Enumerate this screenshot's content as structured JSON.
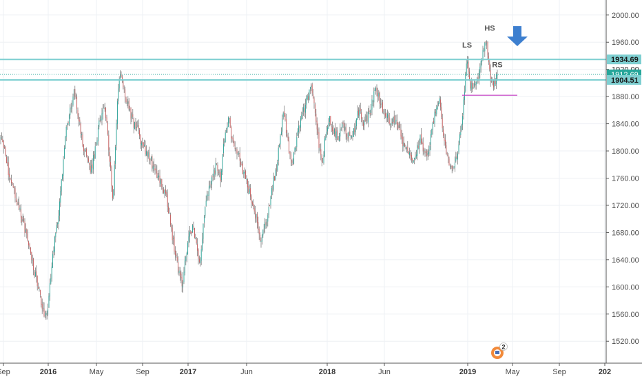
{
  "chart_data": {
    "type": "candlestick",
    "y_ticks": [
      "2000.00",
      "1960.00",
      "1920.00",
      "1880.00",
      "1840.00",
      "1800.00",
      "1760.00",
      "1720.00",
      "1680.00",
      "1640.00",
      "1600.00",
      "1560.00",
      "1520.00"
    ],
    "y_tick_values": [
      2000,
      1960,
      1920,
      1880,
      1840,
      1800,
      1760,
      1720,
      1680,
      1640,
      1600,
      1560,
      1520
    ],
    "ylim": [
      1505,
      2015
    ],
    "x_ticks": [
      {
        "label": "Sep",
        "bold": false
      },
      {
        "label": "2016",
        "bold": true
      },
      {
        "label": "May",
        "bold": false
      },
      {
        "label": "Sep",
        "bold": false
      },
      {
        "label": "2017",
        "bold": true
      },
      {
        "label": "Jun",
        "bold": false
      },
      {
        "label": "2018",
        "bold": true
      },
      {
        "label": "Jun",
        "bold": false
      },
      {
        "label": "2019",
        "bold": true
      },
      {
        "label": "May",
        "bold": false
      },
      {
        "label": "Sep",
        "bold": false
      },
      {
        "label": "202",
        "bold": true
      }
    ],
    "price_levels": [
      {
        "label": "1934.69",
        "value": 1934.69,
        "kind": "resistance",
        "color": "#7ecfd1"
      },
      {
        "label": "1912.69",
        "value": 1912.69,
        "kind": "last-price",
        "color": "#26a69a"
      },
      {
        "label": "1904.51",
        "value": 1904.51,
        "kind": "support",
        "color": "#7ecfd1"
      }
    ],
    "hidden_level_label": "1920.00",
    "neckline_value": 1882,
    "annotations": [
      "LS",
      "HS",
      "RS"
    ],
    "anchors": [
      [
        0,
        1820
      ],
      [
        6,
        1805
      ],
      [
        12,
        1770
      ],
      [
        18,
        1750
      ],
      [
        25,
        1725
      ],
      [
        32,
        1700
      ],
      [
        40,
        1670
      ],
      [
        48,
        1630
      ],
      [
        55,
        1600
      ],
      [
        62,
        1565
      ],
      [
        68,
        1555
      ],
      [
        72,
        1600
      ],
      [
        78,
        1660
      ],
      [
        84,
        1700
      ],
      [
        90,
        1760
      ],
      [
        96,
        1830
      ],
      [
        102,
        1860
      ],
      [
        108,
        1890
      ],
      [
        114,
        1850
      ],
      [
        120,
        1810
      ],
      [
        126,
        1790
      ],
      [
        132,
        1770
      ],
      [
        138,
        1800
      ],
      [
        144,
        1840
      ],
      [
        150,
        1870
      ],
      [
        156,
        1830
      ],
      [
        160,
        1780
      ],
      [
        164,
        1730
      ],
      [
        168,
        1820
      ],
      [
        172,
        1900
      ],
      [
        176,
        1910
      ],
      [
        182,
        1880
      ],
      [
        188,
        1860
      ],
      [
        194,
        1840
      ],
      [
        200,
        1830
      ],
      [
        206,
        1810
      ],
      [
        212,
        1800
      ],
      [
        218,
        1790
      ],
      [
        224,
        1770
      ],
      [
        230,
        1760
      ],
      [
        236,
        1750
      ],
      [
        242,
        1730
      ],
      [
        248,
        1690
      ],
      [
        254,
        1650
      ],
      [
        260,
        1620
      ],
      [
        264,
        1600
      ],
      [
        268,
        1630
      ],
      [
        274,
        1670
      ],
      [
        280,
        1690
      ],
      [
        286,
        1660
      ],
      [
        290,
        1630
      ],
      [
        296,
        1700
      ],
      [
        302,
        1740
      ],
      [
        308,
        1760
      ],
      [
        314,
        1780
      ],
      [
        320,
        1760
      ],
      [
        326,
        1820
      ],
      [
        332,
        1850
      ],
      [
        338,
        1810
      ],
      [
        344,
        1800
      ],
      [
        350,
        1780
      ],
      [
        356,
        1760
      ],
      [
        362,
        1740
      ],
      [
        368,
        1720
      ],
      [
        374,
        1690
      ],
      [
        378,
        1660
      ],
      [
        384,
        1690
      ],
      [
        390,
        1710
      ],
      [
        396,
        1750
      ],
      [
        402,
        1780
      ],
      [
        408,
        1830
      ],
      [
        412,
        1860
      ],
      [
        416,
        1820
      ],
      [
        420,
        1800
      ],
      [
        424,
        1780
      ],
      [
        428,
        1800
      ],
      [
        432,
        1830
      ],
      [
        438,
        1850
      ],
      [
        444,
        1870
      ],
      [
        448,
        1880
      ],
      [
        452,
        1900
      ],
      [
        456,
        1870
      ],
      [
        460,
        1840
      ],
      [
        464,
        1800
      ],
      [
        468,
        1780
      ],
      [
        472,
        1820
      ],
      [
        478,
        1850
      ],
      [
        484,
        1830
      ],
      [
        490,
        1820
      ],
      [
        496,
        1840
      ],
      [
        502,
        1830
      ],
      [
        508,
        1820
      ],
      [
        514,
        1830
      ],
      [
        518,
        1850
      ],
      [
        522,
        1860
      ],
      [
        528,
        1840
      ],
      [
        534,
        1850
      ],
      [
        540,
        1870
      ],
      [
        546,
        1895
      ],
      [
        550,
        1880
      ],
      [
        556,
        1860
      ],
      [
        562,
        1850
      ],
      [
        568,
        1840
      ],
      [
        574,
        1850
      ],
      [
        580,
        1830
      ],
      [
        586,
        1810
      ],
      [
        592,
        1800
      ],
      [
        598,
        1785
      ],
      [
        604,
        1800
      ],
      [
        610,
        1820
      ],
      [
        616,
        1800
      ],
      [
        622,
        1790
      ],
      [
        626,
        1830
      ],
      [
        632,
        1860
      ],
      [
        638,
        1880
      ],
      [
        642,
        1840
      ],
      [
        646,
        1810
      ],
      [
        650,
        1790
      ],
      [
        654,
        1770
      ],
      [
        658,
        1780
      ],
      [
        662,
        1790
      ],
      [
        666,
        1810
      ],
      [
        670,
        1840
      ],
      [
        674,
        1880
      ],
      [
        678,
        1940
      ],
      [
        682,
        1900
      ],
      [
        686,
        1890
      ],
      [
        690,
        1900
      ],
      [
        694,
        1910
      ],
      [
        698,
        1930
      ],
      [
        702,
        1955
      ],
      [
        706,
        1960
      ],
      [
        710,
        1920
      ],
      [
        714,
        1895
      ],
      [
        718,
        1900
      ],
      [
        722,
        1912
      ]
    ]
  }
}
